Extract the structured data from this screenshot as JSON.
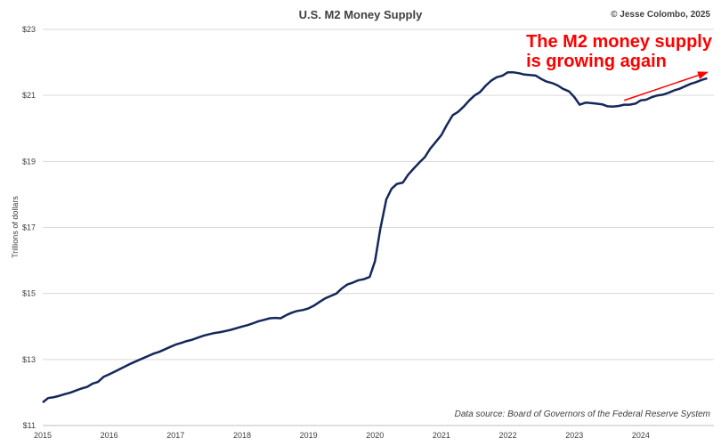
{
  "chart_data": {
    "type": "line",
    "title": "U.S. M2 Money Supply",
    "credit": "© Jesse Colombo, 2025",
    "ylabel": "Trillions of dollars",
    "xlabel": "",
    "source": "Data source: Board of Governors of the Federal Reserve System",
    "annotation_lines": [
      "The M2 money supply",
      "is growing again"
    ],
    "colors": {
      "line": "#14285a",
      "annotation": "#ff0000",
      "grid": "#d9d9d9"
    },
    "grid": true,
    "xlim": [
      2015,
      2025.1
    ],
    "ylim": [
      11,
      23
    ],
    "y_ticks": [
      11,
      13,
      15,
      17,
      19,
      21,
      23
    ],
    "y_tick_labels": [
      "$11",
      "$13",
      "$15",
      "$17",
      "$19",
      "$21",
      "$23"
    ],
    "x_ticks": [
      2015,
      2016,
      2017,
      2018,
      2019,
      2020,
      2021,
      2022,
      2023,
      2024
    ],
    "x_tick_labels": [
      "2015",
      "2016",
      "2017",
      "2018",
      "2019",
      "2020",
      "2021",
      "2022",
      "2023",
      "2024"
    ],
    "annotation_arrow": {
      "from": [
        2023.75,
        20.85
      ],
      "to": [
        2025.0,
        21.7
      ]
    },
    "series": [
      {
        "x": [
          2015.0,
          2015.08,
          2015.17,
          2015.25,
          2015.33,
          2015.42,
          2015.5,
          2015.58,
          2015.67,
          2015.75,
          2015.83,
          2015.92,
          2016.0,
          2016.08,
          2016.17,
          2016.25,
          2016.33,
          2016.42,
          2016.5,
          2016.58,
          2016.67,
          2016.75,
          2016.83,
          2016.92,
          2017.0,
          2017.08,
          2017.17,
          2017.25,
          2017.33,
          2017.42,
          2017.5,
          2017.58,
          2017.67,
          2017.75,
          2017.83,
          2017.92,
          2018.0,
          2018.08,
          2018.17,
          2018.25,
          2018.33,
          2018.42,
          2018.5,
          2018.58,
          2018.67,
          2018.75,
          2018.83,
          2018.92,
          2019.0,
          2019.08,
          2019.17,
          2019.25,
          2019.33,
          2019.42,
          2019.5,
          2019.58,
          2019.67,
          2019.75,
          2019.83,
          2019.92,
          2020.0,
          2020.08,
          2020.17,
          2020.25,
          2020.33,
          2020.42,
          2020.5,
          2020.58,
          2020.67,
          2020.75,
          2020.83,
          2020.92,
          2021.0,
          2021.08,
          2021.17,
          2021.25,
          2021.33,
          2021.42,
          2021.5,
          2021.58,
          2021.67,
          2021.75,
          2021.83,
          2021.92,
          2022.0,
          2022.08,
          2022.17,
          2022.25,
          2022.33,
          2022.42,
          2022.5,
          2022.58,
          2022.67,
          2022.75,
          2022.83,
          2022.92,
          2023.0,
          2023.08,
          2023.17,
          2023.25,
          2023.33,
          2023.42,
          2023.5,
          2023.58,
          2023.67,
          2023.75,
          2023.83,
          2023.92,
          2024.0,
          2024.08,
          2024.17,
          2024.25,
          2024.33,
          2024.42,
          2024.5,
          2024.58,
          2024.67,
          2024.75,
          2024.83,
          2024.92,
          2025.0
        ],
        "values": [
          11.7,
          11.83,
          11.86,
          11.9,
          11.95,
          12.0,
          12.06,
          12.12,
          12.17,
          12.27,
          12.32,
          12.48,
          12.55,
          12.63,
          12.72,
          12.8,
          12.88,
          12.96,
          13.03,
          13.1,
          13.18,
          13.23,
          13.3,
          13.38,
          13.45,
          13.5,
          13.56,
          13.6,
          13.66,
          13.72,
          13.76,
          13.8,
          13.83,
          13.86,
          13.9,
          13.95,
          14.0,
          14.04,
          14.1,
          14.16,
          14.2,
          14.25,
          14.26,
          14.25,
          14.35,
          14.42,
          14.47,
          14.5,
          14.55,
          14.63,
          14.75,
          14.85,
          14.92,
          15.0,
          15.15,
          15.27,
          15.33,
          15.4,
          15.43,
          15.5,
          15.98,
          16.95,
          17.85,
          18.17,
          18.32,
          18.36,
          18.6,
          18.78,
          18.97,
          19.13,
          19.38,
          19.6,
          19.8,
          20.1,
          20.4,
          20.5,
          20.65,
          20.85,
          21.0,
          21.1,
          21.3,
          21.45,
          21.55,
          21.6,
          21.7,
          21.7,
          21.67,
          21.63,
          21.62,
          21.6,
          21.5,
          21.42,
          21.37,
          21.3,
          21.2,
          21.12,
          20.95,
          20.72,
          20.78,
          20.77,
          20.75,
          20.73,
          20.67,
          20.66,
          20.68,
          20.72,
          20.72,
          20.75,
          20.85,
          20.87,
          20.95,
          21.0,
          21.02,
          21.08,
          21.15,
          21.2,
          21.28,
          21.35,
          21.4,
          21.47,
          21.52
        ]
      }
    ]
  }
}
